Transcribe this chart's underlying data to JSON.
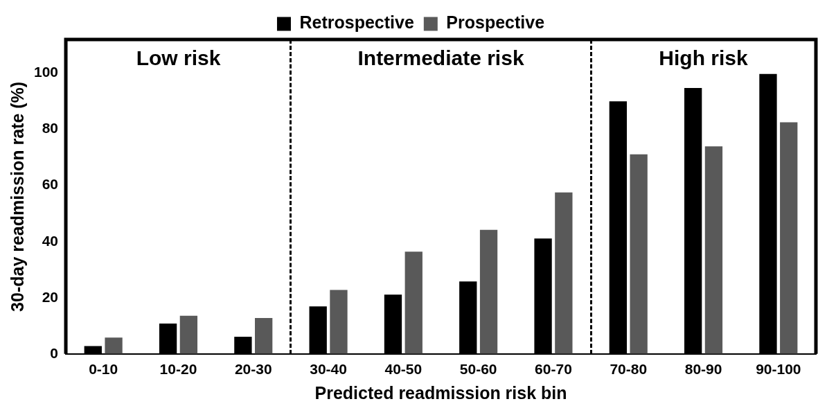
{
  "chart_data": {
    "type": "bar",
    "xlabel": "Predicted readmission risk bin",
    "ylabel": "30-day readmission rate (%)",
    "categories": [
      "0-10",
      "10-20",
      "20-30",
      "30-40",
      "40-50",
      "50-60",
      "60-70",
      "70-80",
      "80-90",
      "90-100"
    ],
    "series": [
      {
        "name": "Retrospective",
        "color": "#000000",
        "values": [
          2.8,
          10.8,
          6.1,
          16.9,
          21.1,
          25.8,
          41.1,
          90,
          94.7,
          99.7
        ]
      },
      {
        "name": "Prospective",
        "color": "#595959",
        "values": [
          5.8,
          13.6,
          12.8,
          22.8,
          36.4,
          44.2,
          57.5,
          71.1,
          73.9,
          82.5
        ]
      }
    ],
    "annotations": [
      "Low risk",
      "Intermediate risk",
      "High risk"
    ],
    "ylim": [
      0,
      112
    ],
    "yticks": [
      0,
      20,
      40,
      60,
      80,
      100
    ],
    "grid": false,
    "legend": "top"
  }
}
